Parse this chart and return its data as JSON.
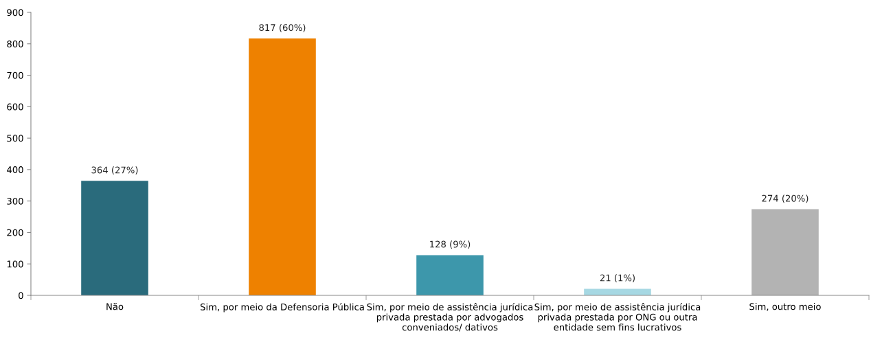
{
  "chart_data": {
    "type": "bar",
    "categories": [
      "Não",
      "Sim, por meio da Defensoria Pública",
      "Sim, por meio de assistência jurídica\nprivada prestada por advogados\nconveniados/ dativos",
      "Sim, por meio de assistência jurídica\nprivada prestada por ONG ou outra\nentidade sem fins lucrativos",
      "Sim, outro meio"
    ],
    "values": [
      364,
      817,
      128,
      21,
      274
    ],
    "colors": [
      "#2a6b7c",
      "#ee8100",
      "#3d97ab",
      "#a6d8e3",
      "#b3b3b3"
    ],
    "value_labels": [
      "364 (27%)",
      "817 (60%)",
      "128 (9%)",
      "21 (1%)",
      "274 (20%)"
    ],
    "ylim": [
      0,
      900
    ],
    "yticks": [
      0,
      100,
      200,
      300,
      400,
      500,
      600,
      700,
      800,
      900
    ],
    "grid": false,
    "legend": false
  }
}
